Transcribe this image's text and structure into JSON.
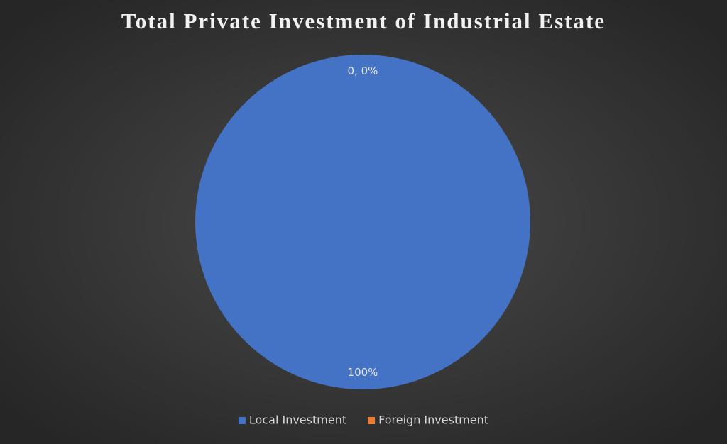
{
  "chart_data": {
    "type": "pie",
    "title": "Total Private Investment of Industrial Estate",
    "categories": [
      "Local Investment",
      "Foreign Investment"
    ],
    "values": [
      100,
      0
    ],
    "value_labels": [
      "100%",
      "0, 0%"
    ],
    "colors": [
      "#4472c4",
      "#ed7d31"
    ],
    "legend": "bottom"
  }
}
